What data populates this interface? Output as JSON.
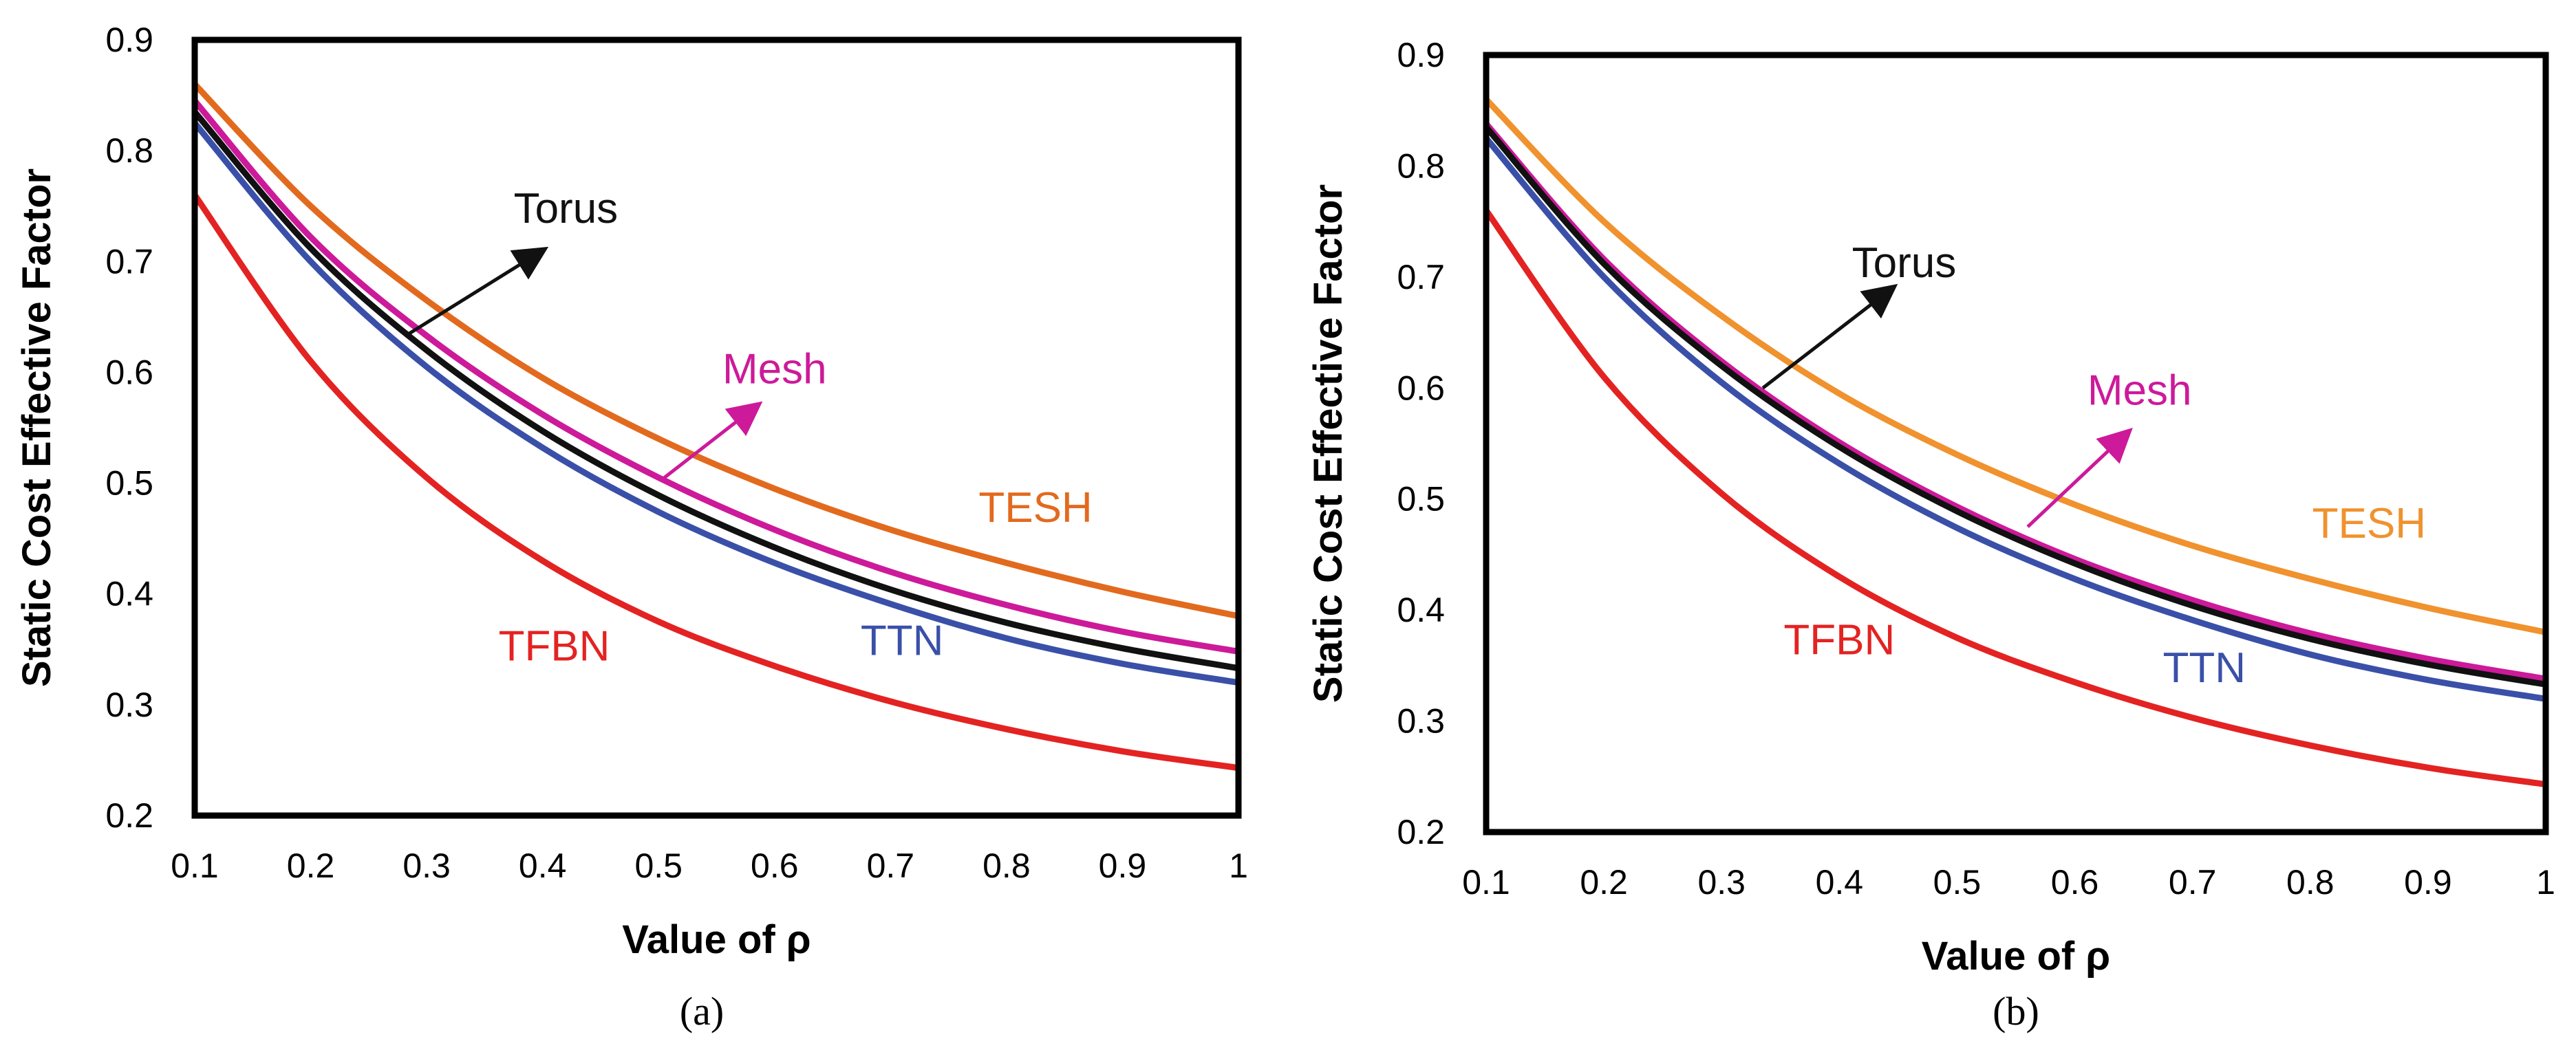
{
  "chart_data": [
    {
      "type": "line",
      "caption": "(a)",
      "xlabel": "Value  of ρ",
      "ylabel": "Static Cost Effective Factor",
      "xlim": [
        0.1,
        1
      ],
      "ylim": [
        0.2,
        0.9
      ],
      "x_ticks": [
        "0.1",
        "0.2",
        "0.3",
        "0.4",
        "0.5",
        "0.6",
        "0.7",
        "0.8",
        "0.9",
        "1"
      ],
      "y_ticks": [
        "0.2",
        "0.3",
        "0.4",
        "0.5",
        "0.6",
        "0.7",
        "0.8",
        "0.9"
      ],
      "x": [
        0.1,
        0.2,
        0.3,
        0.4,
        0.5,
        0.6,
        0.7,
        0.8,
        0.9,
        1.0
      ],
      "series": [
        {
          "name": "TESH",
          "color": "#e26a1e",
          "values": [
            0.86,
            0.75,
            0.665,
            0.595,
            0.54,
            0.495,
            0.458,
            0.428,
            0.402,
            0.38
          ]
        },
        {
          "name": "Mesh",
          "color": "#cc1a9a",
          "values": [
            0.845,
            0.722,
            0.633,
            0.562,
            0.505,
            0.458,
            0.42,
            0.39,
            0.366,
            0.348
          ]
        },
        {
          "name": "Torus",
          "color": "#111111",
          "values": [
            0.835,
            0.712,
            0.62,
            0.547,
            0.489,
            0.442,
            0.404,
            0.374,
            0.351,
            0.333
          ]
        },
        {
          "name": "TTN",
          "color": "#3a50a8",
          "values": [
            0.825,
            0.7,
            0.605,
            0.532,
            0.474,
            0.428,
            0.391,
            0.36,
            0.337,
            0.32
          ]
        },
        {
          "name": "TFBN",
          "color": "#e32322",
          "values": [
            0.76,
            0.61,
            0.505,
            0.43,
            0.375,
            0.335,
            0.303,
            0.278,
            0.258,
            0.243
          ]
        }
      ],
      "annotations": [
        {
          "text": "Torus",
          "color": "#111111",
          "x": 0.42,
          "y": 0.735,
          "arrow": {
            "from": [
              0.285,
              0.635
            ],
            "to": [
              0.4,
              0.71
            ]
          }
        },
        {
          "text": "Mesh",
          "color": "#cc1a9a",
          "x": 0.6,
          "y": 0.59,
          "arrow": {
            "from": [
              0.505,
              0.505
            ],
            "to": [
              0.585,
              0.57
            ]
          }
        },
        {
          "text": "TESH",
          "color": "#e26a1e",
          "x": 0.825,
          "y": 0.465
        },
        {
          "text": "TFBN",
          "color": "#e32322",
          "x": 0.41,
          "y": 0.34
        },
        {
          "text": "TTN",
          "color": "#3a50a8",
          "x": 0.71,
          "y": 0.345
        }
      ]
    },
    {
      "type": "line",
      "caption": "(b)",
      "xlabel": "Value of ρ",
      "ylabel": "Static Cost Effective Factor",
      "xlim": [
        0.1,
        1
      ],
      "ylim": [
        0.2,
        0.9
      ],
      "x_ticks": [
        "0.1",
        "0.2",
        "0.3",
        "0.4",
        "0.5",
        "0.6",
        "0.7",
        "0.8",
        "0.9",
        "1"
      ],
      "y_ticks": [
        "0.2",
        "0.3",
        "0.4",
        "0.5",
        "0.6",
        "0.7",
        "0.8",
        "0.9"
      ],
      "x": [
        0.1,
        0.2,
        0.3,
        0.4,
        0.5,
        0.6,
        0.7,
        0.8,
        0.9,
        1.0
      ],
      "series": [
        {
          "name": "TESH",
          "color": "#f0922e",
          "values": [
            0.86,
            0.75,
            0.665,
            0.595,
            0.54,
            0.495,
            0.458,
            0.428,
            0.402,
            0.38
          ]
        },
        {
          "name": "Mesh",
          "color": "#cc1a9a",
          "values": [
            0.838,
            0.716,
            0.624,
            0.551,
            0.493,
            0.446,
            0.409,
            0.379,
            0.356,
            0.338
          ]
        },
        {
          "name": "Torus",
          "color": "#111111",
          "values": [
            0.835,
            0.712,
            0.62,
            0.547,
            0.489,
            0.442,
            0.404,
            0.374,
            0.351,
            0.333
          ]
        },
        {
          "name": "TTN",
          "color": "#3a50a8",
          "values": [
            0.825,
            0.7,
            0.605,
            0.532,
            0.474,
            0.428,
            0.391,
            0.36,
            0.337,
            0.32
          ]
        },
        {
          "name": "TFBN",
          "color": "#e32322",
          "values": [
            0.76,
            0.61,
            0.505,
            0.43,
            0.375,
            0.335,
            0.303,
            0.278,
            0.258,
            0.243
          ]
        }
      ],
      "annotations": [
        {
          "text": "Torus",
          "color": "#111111",
          "x": 0.455,
          "y": 0.7,
          "arrow": {
            "from": [
              0.335,
              0.6
            ],
            "to": [
              0.445,
              0.69
            ]
          }
        },
        {
          "text": "Mesh",
          "color": "#cc1a9a",
          "x": 0.655,
          "y": 0.585,
          "arrow": {
            "from": [
              0.56,
              0.475
            ],
            "to": [
              0.645,
              0.56
            ]
          }
        },
        {
          "text": "TESH",
          "color": "#f0922e",
          "x": 0.85,
          "y": 0.465
        },
        {
          "text": "TFBN",
          "color": "#e32322",
          "x": 0.4,
          "y": 0.36
        },
        {
          "text": "TTN",
          "color": "#3a50a8",
          "x": 0.71,
          "y": 0.335
        }
      ]
    }
  ]
}
